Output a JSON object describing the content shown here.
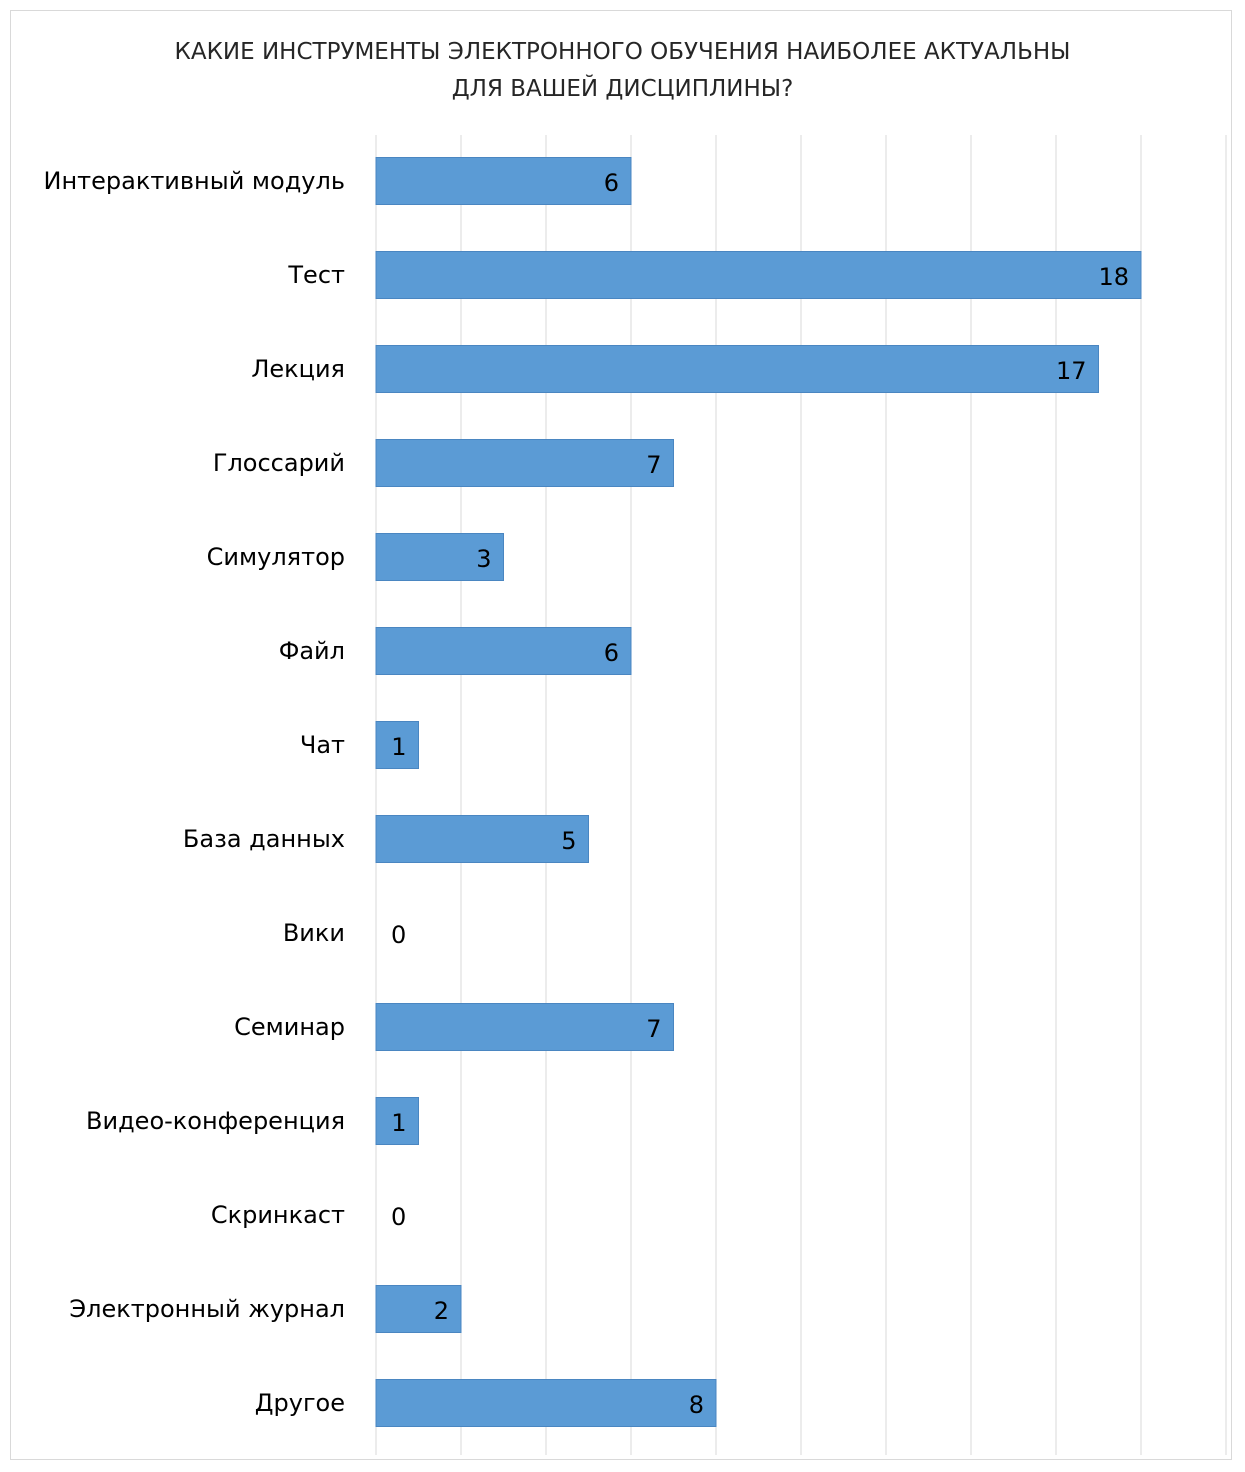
{
  "chart_data": {
    "type": "bar",
    "orientation": "horizontal",
    "title": [
      "КАКИЕ ИНСТРУМЕНТЫ ЭЛЕКТРОННОГО ОБУЧЕНИЯ НАИБОЛЕЕ АКТУАЛЬНЫ",
      "ДЛЯ ВАШЕЙ ДИСЦИПЛИНЫ?"
    ],
    "categories": [
      "Интерактивный модуль",
      "Тест",
      "Лекция",
      "Глоссарий",
      "Симулятор",
      "Файл",
      "Чат",
      "База данных",
      "Вики",
      "Семинар",
      "Видео-конференция",
      "Скринкаст",
      "Электронный журнал",
      "Другое"
    ],
    "values": [
      6,
      18,
      17,
      7,
      3,
      6,
      1,
      5,
      0,
      7,
      1,
      0,
      2,
      8
    ],
    "xlim": [
      0,
      20
    ],
    "grid": true,
    "data_labels": true,
    "bar_color": "#5b9bd5"
  }
}
